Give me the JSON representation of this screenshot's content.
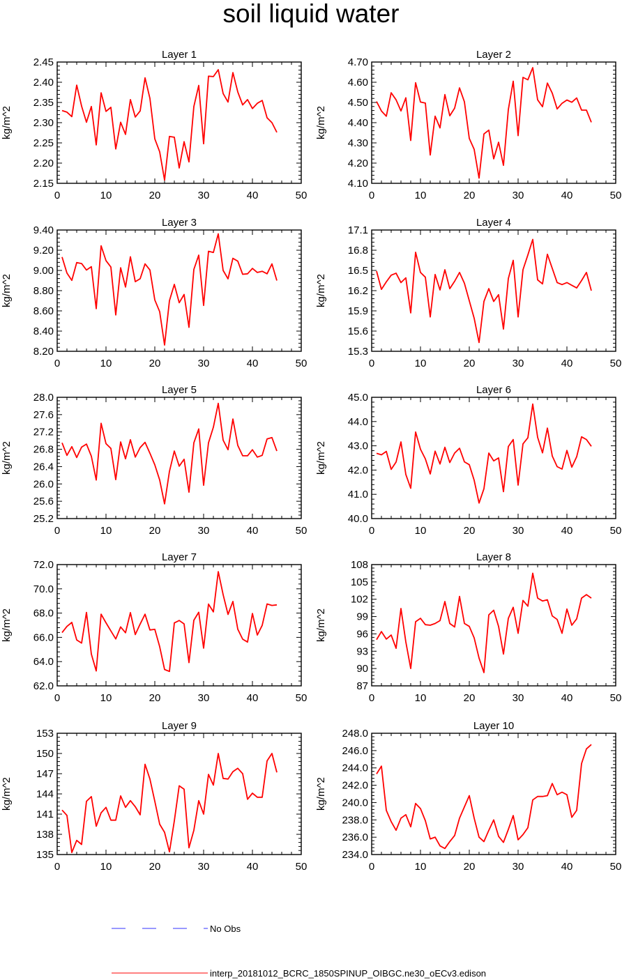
{
  "title": "soil liquid water",
  "legend": {
    "items": [
      {
        "label": "No Obs",
        "color": "#3333ff",
        "style": "dashed"
      },
      {
        "label": "interp_20181012_BCRC_1850SPINUP_OIBGC.ne30_oECv3.edison",
        "color": "#ff0000",
        "style": "solid"
      }
    ]
  },
  "chart_data": [
    {
      "type": "line",
      "title": "Layer 1",
      "ylabel": "kg/m^2",
      "xlim": [
        0,
        50
      ],
      "xticks": [
        "0",
        "10",
        "20",
        "30",
        "40",
        "50"
      ],
      "ylim": [
        2.15,
        2.45
      ],
      "yticks": [
        "2.15",
        "2.20",
        "2.25",
        "2.30",
        "2.35",
        "2.40",
        "2.45"
      ],
      "x": [
        1,
        2,
        3,
        4,
        5,
        6,
        7,
        8,
        9,
        10,
        11,
        12,
        13,
        14,
        15,
        16,
        17,
        18,
        19,
        20,
        21,
        22,
        23,
        24,
        25,
        26,
        27,
        28,
        29,
        30,
        31,
        32,
        33,
        34,
        35,
        36,
        37,
        38,
        39,
        40,
        41,
        42,
        43,
        44,
        45
      ],
      "series": [
        {
          "color": "#ff0000",
          "values": [
            2.33,
            2.326,
            2.315,
            2.393,
            2.341,
            2.301,
            2.34,
            2.245,
            2.374,
            2.328,
            2.338,
            2.235,
            2.301,
            2.271,
            2.357,
            2.314,
            2.329,
            2.411,
            2.36,
            2.26,
            2.228,
            2.158,
            2.266,
            2.264,
            2.188,
            2.253,
            2.203,
            2.34,
            2.392,
            2.248,
            2.415,
            2.414,
            2.431,
            2.372,
            2.351,
            2.424,
            2.376,
            2.344,
            2.357,
            2.335,
            2.348,
            2.355,
            2.312,
            2.3,
            2.276
          ]
        }
      ]
    },
    {
      "type": "line",
      "title": "Layer 2",
      "ylabel": "kg/m^2",
      "xlim": [
        0,
        50
      ],
      "xticks": [
        "0",
        "10",
        "20",
        "30",
        "40",
        "50"
      ],
      "ylim": [
        4.1,
        4.7
      ],
      "yticks": [
        "4.10",
        "4.20",
        "4.30",
        "4.40",
        "4.50",
        "4.60",
        "4.70"
      ],
      "x": [
        1,
        2,
        3,
        4,
        5,
        6,
        7,
        8,
        9,
        10,
        11,
        12,
        13,
        14,
        15,
        16,
        17,
        18,
        19,
        20,
        21,
        22,
        23,
        24,
        25,
        26,
        27,
        28,
        29,
        30,
        31,
        32,
        33,
        34,
        35,
        36,
        37,
        38,
        39,
        40,
        41,
        42,
        43,
        44,
        45
      ],
      "series": [
        {
          "color": "#ff0000",
          "values": [
            4.505,
            4.458,
            4.432,
            4.548,
            4.513,
            4.458,
            4.523,
            4.312,
            4.598,
            4.502,
            4.497,
            4.24,
            4.432,
            4.374,
            4.539,
            4.434,
            4.472,
            4.572,
            4.503,
            4.322,
            4.268,
            4.126,
            4.344,
            4.363,
            4.221,
            4.303,
            4.189,
            4.465,
            4.605,
            4.336,
            4.624,
            4.612,
            4.672,
            4.513,
            4.479,
            4.596,
            4.546,
            4.468,
            4.496,
            4.512,
            4.501,
            4.522,
            4.462,
            4.462,
            4.402
          ]
        }
      ]
    },
    {
      "type": "line",
      "title": "Layer 3",
      "ylabel": "kg/m^2",
      "xlim": [
        0,
        50
      ],
      "xticks": [
        "0",
        "10",
        "20",
        "30",
        "40",
        "50"
      ],
      "ylim": [
        8.2,
        9.4
      ],
      "yticks": [
        "8.20",
        "8.40",
        "8.60",
        "8.80",
        "9.00",
        "9.20",
        "9.40"
      ],
      "x": [
        1,
        2,
        3,
        4,
        5,
        6,
        7,
        8,
        9,
        10,
        11,
        12,
        13,
        14,
        15,
        16,
        17,
        18,
        19,
        20,
        21,
        22,
        23,
        24,
        25,
        26,
        27,
        28,
        29,
        30,
        31,
        32,
        33,
        34,
        35,
        36,
        37,
        38,
        39,
        40,
        41,
        42,
        43,
        44,
        45
      ],
      "series": [
        {
          "color": "#ff0000",
          "values": [
            9.133,
            8.974,
            8.902,
            9.078,
            9.068,
            9.004,
            9.037,
            8.622,
            9.244,
            9.097,
            9.034,
            8.56,
            9.027,
            8.836,
            9.135,
            8.889,
            8.918,
            9.065,
            9.005,
            8.708,
            8.592,
            8.262,
            8.701,
            8.862,
            8.681,
            8.762,
            8.437,
            9.01,
            9.151,
            8.654,
            9.19,
            9.178,
            9.362,
            9.0,
            8.917,
            9.12,
            9.092,
            8.962,
            8.967,
            9.02,
            8.98,
            8.992,
            8.967,
            9.065,
            8.9
          ]
        }
      ]
    },
    {
      "type": "line",
      "title": "Layer 4",
      "ylabel": "kg/m^2",
      "xlim": [
        0,
        50
      ],
      "xticks": [
        "0",
        "10",
        "20",
        "30",
        "40",
        "50"
      ],
      "ylim": [
        15.3,
        17.1
      ],
      "yticks": [
        "15.3",
        "15.6",
        "15.9",
        "16.2",
        "16.5",
        "16.8",
        "17.1"
      ],
      "x": [
        1,
        2,
        3,
        4,
        5,
        6,
        7,
        8,
        9,
        10,
        11,
        12,
        13,
        14,
        15,
        16,
        17,
        18,
        19,
        20,
        21,
        22,
        23,
        24,
        25,
        26,
        27,
        28,
        29,
        30,
        31,
        32,
        33,
        34,
        35,
        36,
        37,
        38,
        39,
        40,
        41,
        42,
        43,
        44,
        45
      ],
      "series": [
        {
          "color": "#ff0000",
          "values": [
            16.49,
            16.22,
            16.33,
            16.43,
            16.46,
            16.32,
            16.39,
            15.87,
            16.77,
            16.47,
            16.4,
            15.81,
            16.44,
            16.21,
            16.51,
            16.23,
            16.34,
            16.47,
            16.31,
            16.05,
            15.79,
            15.43,
            16.04,
            16.23,
            16.04,
            16.14,
            15.63,
            16.38,
            16.65,
            15.81,
            16.51,
            16.73,
            16.96,
            16.36,
            16.3,
            16.74,
            16.53,
            16.32,
            16.29,
            16.32,
            16.28,
            16.24,
            16.35,
            16.47,
            16.2
          ]
        }
      ]
    },
    {
      "type": "line",
      "title": "Layer 5",
      "ylabel": "kg/m^2",
      "xlim": [
        0,
        50
      ],
      "xticks": [
        "0",
        "10",
        "20",
        "30",
        "40",
        "50"
      ],
      "ylim": [
        25.2,
        28.0
      ],
      "yticks": [
        "25.2",
        "25.6",
        "26.0",
        "26.4",
        "26.8",
        "27.2",
        "27.6",
        "28.0"
      ],
      "x": [
        1,
        2,
        3,
        4,
        5,
        6,
        7,
        8,
        9,
        10,
        11,
        12,
        13,
        14,
        15,
        16,
        17,
        18,
        19,
        20,
        21,
        22,
        23,
        24,
        25,
        26,
        27,
        28,
        29,
        30,
        31,
        32,
        33,
        34,
        35,
        36,
        37,
        38,
        39,
        40,
        41,
        42,
        43,
        44,
        45
      ],
      "series": [
        {
          "color": "#ff0000",
          "values": [
            26.95,
            26.66,
            26.86,
            26.61,
            26.85,
            26.92,
            26.64,
            26.09,
            27.4,
            26.93,
            26.82,
            26.1,
            26.97,
            26.58,
            27.02,
            26.62,
            26.84,
            26.96,
            26.71,
            26.44,
            26.09,
            25.54,
            26.29,
            26.76,
            26.41,
            26.57,
            25.81,
            26.95,
            27.27,
            25.97,
            26.95,
            27.31,
            27.86,
            27.01,
            26.79,
            27.5,
            26.89,
            26.65,
            26.65,
            26.79,
            26.62,
            26.66,
            27.04,
            27.07,
            26.76
          ]
        }
      ]
    },
    {
      "type": "line",
      "title": "Layer 6",
      "ylabel": "kg/m^2",
      "xlim": [
        0,
        50
      ],
      "xticks": [
        "0",
        "10",
        "20",
        "30",
        "40",
        "50"
      ],
      "ylim": [
        40.0,
        45.0
      ],
      "yticks": [
        "40.0",
        "41.0",
        "42.0",
        "43.0",
        "44.0",
        "45.0"
      ],
      "x": [
        1,
        2,
        3,
        4,
        5,
        6,
        7,
        8,
        9,
        10,
        11,
        12,
        13,
        14,
        15,
        16,
        17,
        18,
        19,
        20,
        21,
        22,
        23,
        24,
        25,
        26,
        27,
        28,
        29,
        30,
        31,
        32,
        33,
        34,
        35,
        36,
        37,
        38,
        39,
        40,
        41,
        42,
        43,
        44,
        45
      ],
      "series": [
        {
          "color": "#ff0000",
          "values": [
            42.69,
            42.63,
            42.77,
            42.03,
            42.33,
            43.16,
            41.82,
            41.25,
            43.57,
            42.86,
            42.46,
            41.84,
            42.78,
            42.25,
            42.94,
            42.31,
            42.7,
            42.9,
            42.34,
            42.22,
            41.58,
            40.64,
            41.23,
            42.7,
            42.38,
            42.5,
            41.11,
            42.97,
            43.26,
            41.38,
            43.08,
            43.33,
            44.72,
            43.35,
            42.71,
            43.73,
            42.58,
            42.14,
            42.04,
            42.81,
            42.12,
            42.55,
            43.37,
            43.26,
            42.98
          ]
        }
      ]
    },
    {
      "type": "line",
      "title": "Layer 7",
      "ylabel": "kg/m^2",
      "xlim": [
        0,
        50
      ],
      "xticks": [
        "0",
        "10",
        "20",
        "30",
        "40",
        "50"
      ],
      "ylim": [
        62.0,
        72.0
      ],
      "yticks": [
        "62.0",
        "64.0",
        "66.0",
        "68.0",
        "70.0",
        "72.0"
      ],
      "x": [
        1,
        2,
        3,
        4,
        5,
        6,
        7,
        8,
        9,
        10,
        11,
        12,
        13,
        14,
        15,
        16,
        17,
        18,
        19,
        20,
        21,
        22,
        23,
        24,
        25,
        26,
        27,
        28,
        29,
        30,
        31,
        32,
        33,
        34,
        35,
        36,
        37,
        38,
        39,
        40,
        41,
        42,
        43,
        44,
        45
      ],
      "series": [
        {
          "color": "#ff0000",
          "values": [
            66.39,
            66.9,
            67.23,
            65.79,
            65.53,
            68.06,
            64.62,
            63.23,
            67.91,
            67.2,
            66.53,
            65.87,
            66.86,
            66.38,
            68.04,
            66.23,
            67.1,
            67.91,
            66.61,
            66.66,
            65.23,
            63.35,
            63.19,
            67.19,
            67.39,
            67.11,
            63.92,
            67.41,
            68.07,
            65.11,
            68.74,
            68.1,
            71.42,
            69.52,
            67.89,
            68.96,
            66.67,
            65.85,
            65.61,
            67.97,
            66.19,
            66.99,
            68.75,
            68.63,
            68.68
          ]
        }
      ]
    },
    {
      "type": "line",
      "title": "Layer 8",
      "ylabel": "kg/m^2",
      "xlim": [
        0,
        50
      ],
      "xticks": [
        "0",
        "10",
        "20",
        "30",
        "40",
        "50"
      ],
      "ylim": [
        87,
        108
      ],
      "yticks": [
        "87",
        "90",
        "93",
        "96",
        "99",
        "102",
        "105",
        "108"
      ],
      "x": [
        1,
        2,
        3,
        4,
        5,
        6,
        7,
        8,
        9,
        10,
        11,
        12,
        13,
        14,
        15,
        16,
        17,
        18,
        19,
        20,
        21,
        22,
        23,
        24,
        25,
        26,
        27,
        28,
        29,
        30,
        31,
        32,
        33,
        34,
        35,
        36,
        37,
        38,
        39,
        40,
        41,
        42,
        43,
        44,
        45
      ],
      "series": [
        {
          "color": "#ff0000",
          "values": [
            95.0,
            96.4,
            95.1,
            95.8,
            93.5,
            100.4,
            94.6,
            90.0,
            98.1,
            98.7,
            97.6,
            97.5,
            97.8,
            98.3,
            101.6,
            97.8,
            97.2,
            102.5,
            97.8,
            97.3,
            95.3,
            91.8,
            89.3,
            99.3,
            100.1,
            97.3,
            92.5,
            98.7,
            100.6,
            96.1,
            101.8,
            100.8,
            106.5,
            102.2,
            101.7,
            101.9,
            99.1,
            98.5,
            96.1,
            100.3,
            97.5,
            98.6,
            102.2,
            102.8,
            102.2
          ]
        }
      ]
    },
    {
      "type": "line",
      "title": "Layer 9",
      "ylabel": "kg/m^2",
      "xlim": [
        0,
        50
      ],
      "xticks": [
        "0",
        "10",
        "20",
        "30",
        "40",
        "50"
      ],
      "ylim": [
        135,
        153
      ],
      "yticks": [
        "135",
        "138",
        "141",
        "144",
        "147",
        "150",
        "153"
      ],
      "x": [
        1,
        2,
        3,
        4,
        5,
        6,
        7,
        8,
        9,
        10,
        11,
        12,
        13,
        14,
        15,
        16,
        17,
        18,
        19,
        20,
        21,
        22,
        23,
        24,
        25,
        26,
        27,
        28,
        29,
        30,
        31,
        32,
        33,
        34,
        35,
        36,
        37,
        38,
        39,
        40,
        41,
        42,
        43,
        44,
        45
      ],
      "series": [
        {
          "color": "#ff0000",
          "values": [
            141.6,
            140.8,
            135.3,
            137.1,
            136.5,
            142.9,
            143.6,
            139.2,
            141.2,
            142.0,
            140.1,
            140.1,
            143.7,
            142.0,
            143.0,
            142.1,
            140.9,
            148.4,
            146.2,
            142.9,
            139.5,
            138.3,
            135.4,
            140.0,
            145.2,
            144.7,
            136.0,
            138.6,
            143.0,
            141.0,
            146.9,
            145.3,
            150.0,
            146.3,
            146.2,
            147.3,
            147.8,
            147.0,
            143.2,
            144.1,
            143.5,
            143.5,
            148.9,
            150.0,
            147.2
          ]
        }
      ]
    },
    {
      "type": "line",
      "title": "Layer 10",
      "ylabel": "kg/m^2",
      "xlim": [
        0,
        50
      ],
      "xticks": [
        "0",
        "10",
        "20",
        "30",
        "40",
        "50"
      ],
      "ylim": [
        234.0,
        248.0
      ],
      "yticks": [
        "234.0",
        "236.0",
        "238.0",
        "240.0",
        "242.0",
        "244.0",
        "246.0",
        "248.0"
      ],
      "x": [
        1,
        2,
        3,
        4,
        5,
        6,
        7,
        8,
        9,
        10,
        11,
        12,
        13,
        14,
        15,
        16,
        17,
        18,
        19,
        20,
        21,
        22,
        23,
        24,
        25,
        26,
        27,
        28,
        29,
        30,
        31,
        32,
        33,
        34,
        35,
        36,
        37,
        38,
        39,
        40,
        41,
        42,
        43,
        44,
        45
      ],
      "series": [
        {
          "color": "#ff0000",
          "values": [
            243.3,
            244.2,
            239.1,
            237.8,
            236.8,
            238.2,
            238.6,
            237.2,
            239.9,
            239.3,
            237.9,
            235.8,
            236.0,
            235.0,
            234.7,
            235.5,
            236.2,
            238.2,
            239.5,
            240.8,
            238.2,
            236.0,
            235.5,
            236.8,
            238.0,
            236.1,
            235.4,
            236.9,
            238.5,
            235.7,
            236.3,
            237.1,
            240.3,
            240.7,
            240.7,
            240.8,
            242.2,
            240.9,
            241.2,
            240.9,
            238.3,
            239.1,
            244.5,
            246.2,
            246.7
          ]
        }
      ]
    }
  ]
}
